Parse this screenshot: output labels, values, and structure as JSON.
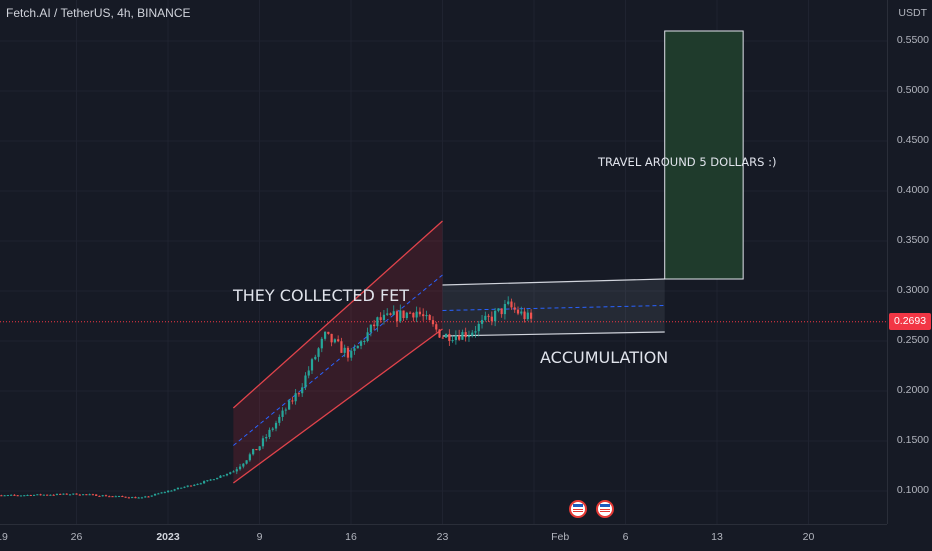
{
  "header": {
    "symbol_title": "Fetch.AI / TetherUS, 4h, BINANCE"
  },
  "price_axis": {
    "unit": "USDT",
    "ticks": [
      "0.5500",
      "0.5000",
      "0.4500",
      "0.4000",
      "0.3500",
      "0.3000",
      "0.2500",
      "0.2000",
      "0.1500",
      "0.1000"
    ],
    "last_price": "0.2693"
  },
  "time_axis": {
    "ticks": [
      {
        "label": "19",
        "bold": false
      },
      {
        "label": "26",
        "bold": false
      },
      {
        "label": "2023",
        "bold": true
      },
      {
        "label": "9",
        "bold": false
      },
      {
        "label": "16",
        "bold": false
      },
      {
        "label": "23",
        "bold": false
      },
      {
        "label": "Feb",
        "bold": false
      },
      {
        "label": "6",
        "bold": false
      },
      {
        "label": "13",
        "bold": false
      },
      {
        "label": "20",
        "bold": false
      }
    ]
  },
  "annotations": {
    "collected": "THEY COLLECTED FET",
    "accumulation": "ACCUMULATION",
    "target": "TRAVEL AROUND 5 DOLLARS :)"
  },
  "events": [
    "us-economic-event-icon",
    "us-economic-event-icon"
  ],
  "colors": {
    "background": "#161a25",
    "up": "#26a69a",
    "down": "#ef5350",
    "channel": "#e0434b",
    "range": "#d1d4dc",
    "target_box": "#1f3b2c",
    "last_price": "#f23645",
    "midline": "#2962ff"
  },
  "chart_data": {
    "type": "candlestick",
    "title": "Fetch.AI / TetherUS, 4h, BINANCE",
    "x_range": [
      "2022-12-19",
      "2023-02-23"
    ],
    "y_range": [
      0.07,
      0.57
    ],
    "y_unit": "USDT",
    "price_path": [
      [
        "2022-12-19",
        0.095
      ],
      [
        "2022-12-26",
        0.097
      ],
      [
        "2022-12-31",
        0.093
      ],
      [
        "2023-01-02",
        0.1
      ],
      [
        "2023-01-05",
        0.11
      ],
      [
        "2023-01-07",
        0.12
      ],
      [
        "2023-01-09",
        0.145
      ],
      [
        "2023-01-12",
        0.2
      ],
      [
        "2023-01-14",
        0.255
      ],
      [
        "2023-01-16",
        0.235
      ],
      [
        "2023-01-18",
        0.27
      ],
      [
        "2023-01-21",
        0.28
      ],
      [
        "2023-01-23",
        0.255
      ],
      [
        "2023-01-25",
        0.258
      ],
      [
        "2023-01-28",
        0.285
      ],
      [
        "2023-01-30",
        0.2693
      ]
    ],
    "last_price": 0.2693,
    "drawings": {
      "ascending_channel": {
        "start": "2023-01-07",
        "end": "2023-01-23",
        "lower_start": 0.108,
        "lower_end": 0.262,
        "upper_start": 0.183,
        "upper_end": 0.37
      },
      "accumulation_range": {
        "start": "2023-01-23",
        "end": "2023-02-09",
        "top_start": 0.306,
        "top_end": 0.312,
        "bottom_start": 0.255,
        "bottom_end": 0.259
      },
      "target_box": {
        "start": "2023-02-09",
        "end": "2023-02-15",
        "low": 0.312,
        "high": 0.56
      }
    }
  }
}
